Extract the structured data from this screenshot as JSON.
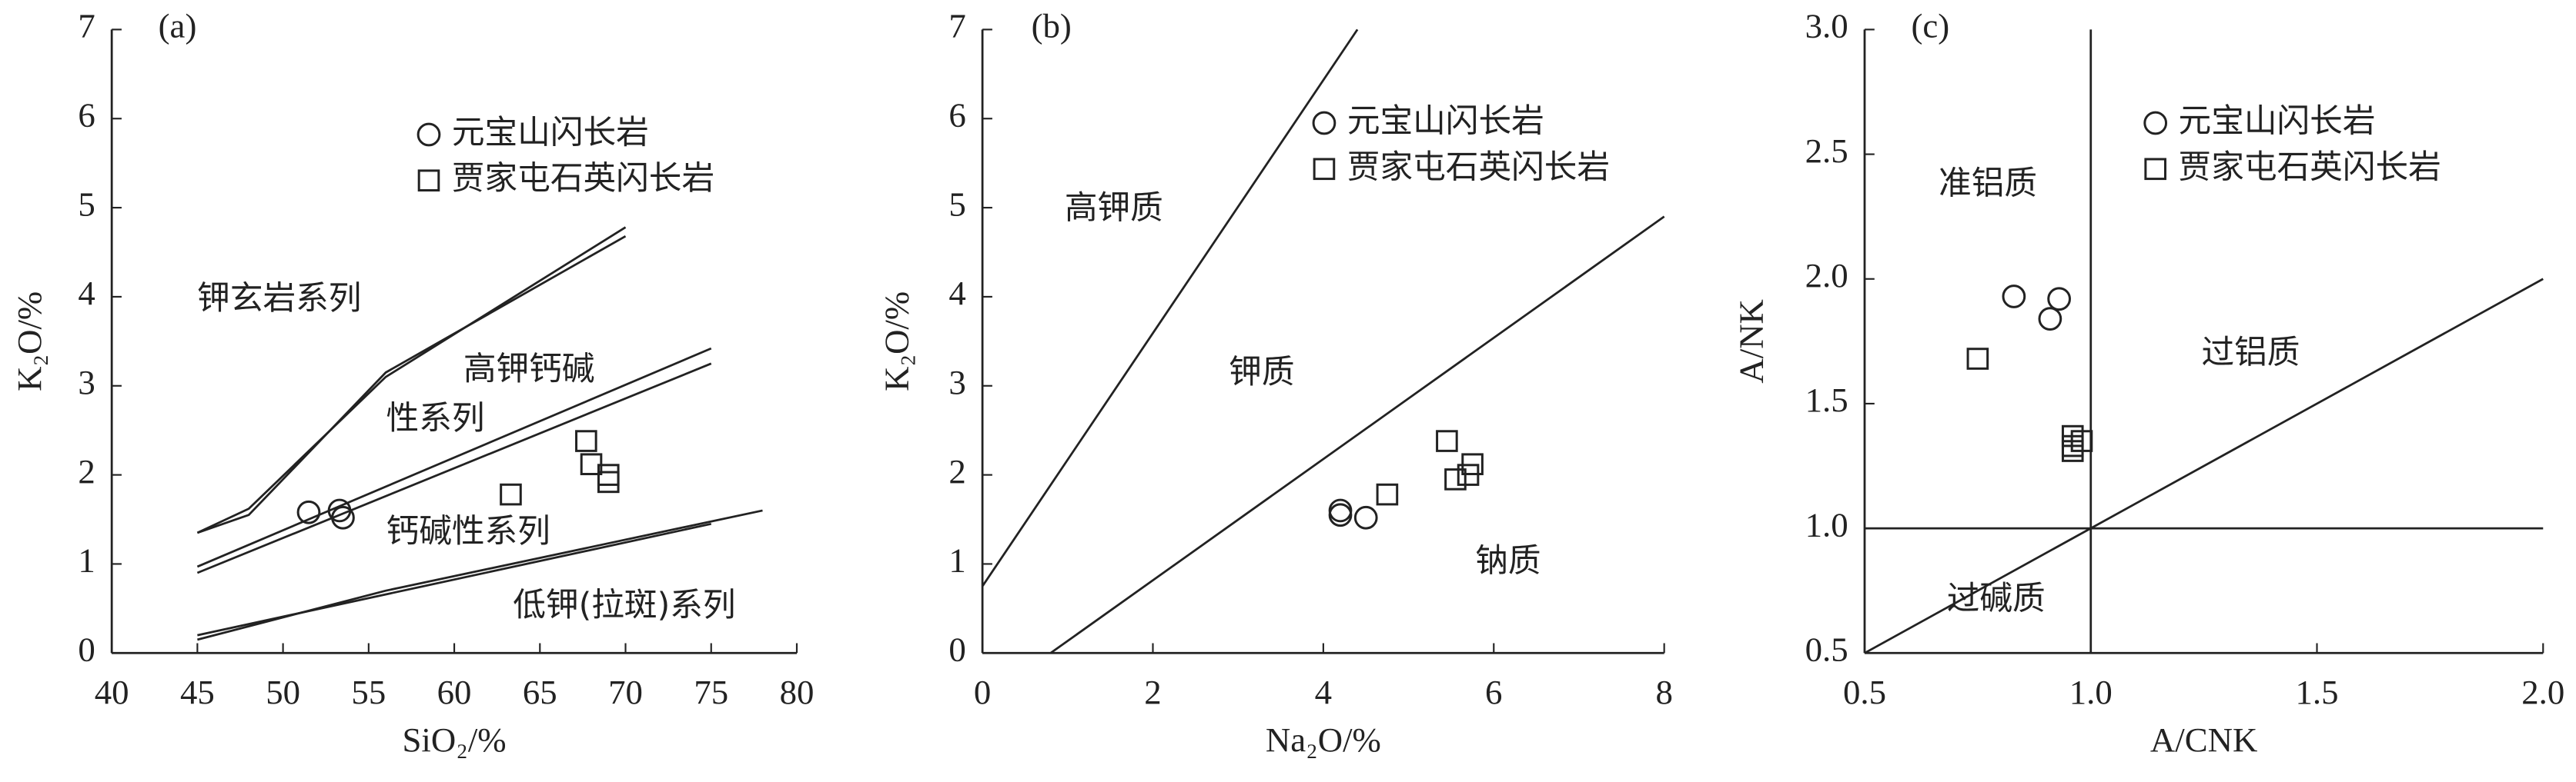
{
  "chart_data": [
    {
      "type": "scatter",
      "label": "(a)",
      "xlabel": "SiO₂/%",
      "ylabel": "K₂O/%",
      "xlim": [
        40,
        80
      ],
      "ylim": [
        0,
        7
      ],
      "xticks": [
        40,
        45,
        50,
        55,
        60,
        65,
        70,
        75,
        80
      ],
      "yticks": [
        0,
        1,
        2,
        3,
        4,
        5,
        6,
        7
      ],
      "series": [
        {
          "name": "元宝山闪长岩",
          "marker": "circle",
          "color": "#222222",
          "x": [
            51.5,
            53.3,
            53.5
          ],
          "values": [
            1.58,
            1.6,
            1.52
          ]
        },
        {
          "name": "贾家屯石英闪长岩",
          "marker": "square",
          "color": "#222222",
          "x": [
            63.3,
            67.7,
            68.0,
            69.0,
            69.0
          ],
          "values": [
            1.78,
            2.38,
            2.12,
            2.0,
            1.92
          ]
        }
      ],
      "lines": [
        {
          "x": [
            45,
            48,
            56,
            70
          ],
          "values": [
            1.35,
            1.62,
            3.1,
            4.78
          ]
        },
        {
          "x": [
            45,
            48,
            56,
            70
          ],
          "values": [
            1.35,
            1.55,
            3.15,
            4.68
          ]
        },
        {
          "x": [
            45,
            75
          ],
          "values": [
            0.97,
            3.42
          ]
        },
        {
          "x": [
            45,
            75
          ],
          "values": [
            0.9,
            3.25
          ]
        },
        {
          "x": [
            45,
            75
          ],
          "values": [
            0.2,
            1.45
          ]
        },
        {
          "x": [
            45,
            56,
            78
          ],
          "values": [
            0.15,
            0.7,
            1.6
          ]
        }
      ],
      "annotations": [
        "钾玄岩系列",
        "高钾钙碱",
        "性系列",
        "钙碱性系列",
        "低钾(拉斑)系列"
      ]
    },
    {
      "type": "scatter",
      "label": "(b)",
      "xlabel": "Na₂O/%",
      "ylabel": "K₂O/%",
      "xlim": [
        0,
        8
      ],
      "ylim": [
        0,
        7
      ],
      "xticks": [
        0,
        2,
        4,
        6,
        8
      ],
      "yticks": [
        0,
        1,
        2,
        3,
        4,
        5,
        6,
        7
      ],
      "series": [
        {
          "name": "元宝山闪长岩",
          "marker": "circle",
          "color": "#222222",
          "x": [
            4.2,
            4.2,
            4.5
          ],
          "values": [
            1.6,
            1.55,
            1.52
          ]
        },
        {
          "name": "贾家屯石英闪长岩",
          "marker": "square",
          "color": "#222222",
          "x": [
            4.75,
            5.45,
            5.75,
            5.55,
            5.7
          ],
          "values": [
            1.78,
            2.38,
            2.12,
            1.95,
            2.0
          ]
        }
      ],
      "lines": [
        {
          "x": [
            0,
            4.4
          ],
          "values": [
            0.75,
            7
          ]
        },
        {
          "x": [
            0.8,
            8
          ],
          "values": [
            0,
            4.9
          ]
        }
      ],
      "annotations": [
        "高钾质",
        "钾质",
        "钠质"
      ]
    },
    {
      "type": "scatter",
      "label": "(c)",
      "xlabel": "A/CNK",
      "ylabel": "A/NK",
      "xlim": [
        0.5,
        2.0
      ],
      "ylim": [
        0.5,
        3.0
      ],
      "xticks": [
        {
          "value": 0.5,
          "label": "0.5"
        },
        {
          "value": 1.0,
          "label": "1.0"
        },
        {
          "value": 1.5,
          "label": "1.5"
        },
        {
          "value": 2.0,
          "label": "2.0"
        }
      ],
      "yticks": [
        {
          "value": 0.5,
          "label": "0.5"
        },
        {
          "value": 1.0,
          "label": "1.0"
        },
        {
          "value": 1.5,
          "label": "1.5"
        },
        {
          "value": 2.0,
          "label": "2.0"
        },
        {
          "value": 2.5,
          "label": "2.5"
        },
        {
          "value": 3.0,
          "label": "3.0"
        }
      ],
      "series": [
        {
          "name": "元宝山闪长岩",
          "marker": "circle",
          "color": "#222222",
          "x": [
            0.83,
            0.93,
            0.91
          ],
          "values": [
            1.93,
            1.92,
            1.84
          ]
        },
        {
          "name": "贾家屯石英闪长岩",
          "marker": "square",
          "color": "#222222",
          "x": [
            0.75,
            0.96,
            0.96,
            0.96,
            0.98
          ],
          "values": [
            1.68,
            1.37,
            1.33,
            1.31,
            1.35
          ]
        }
      ],
      "lines": [
        {
          "x": [
            0.5,
            2.0
          ],
          "values": [
            1.0,
            1.0
          ]
        },
        {
          "x": [
            1.0,
            1.0
          ],
          "values": [
            0.5,
            3.0
          ]
        },
        {
          "x": [
            0.5,
            2.0
          ],
          "values": [
            0.5,
            2.0
          ]
        }
      ],
      "annotations": [
        "准铝质",
        "过铝质",
        "过碱质"
      ]
    }
  ]
}
